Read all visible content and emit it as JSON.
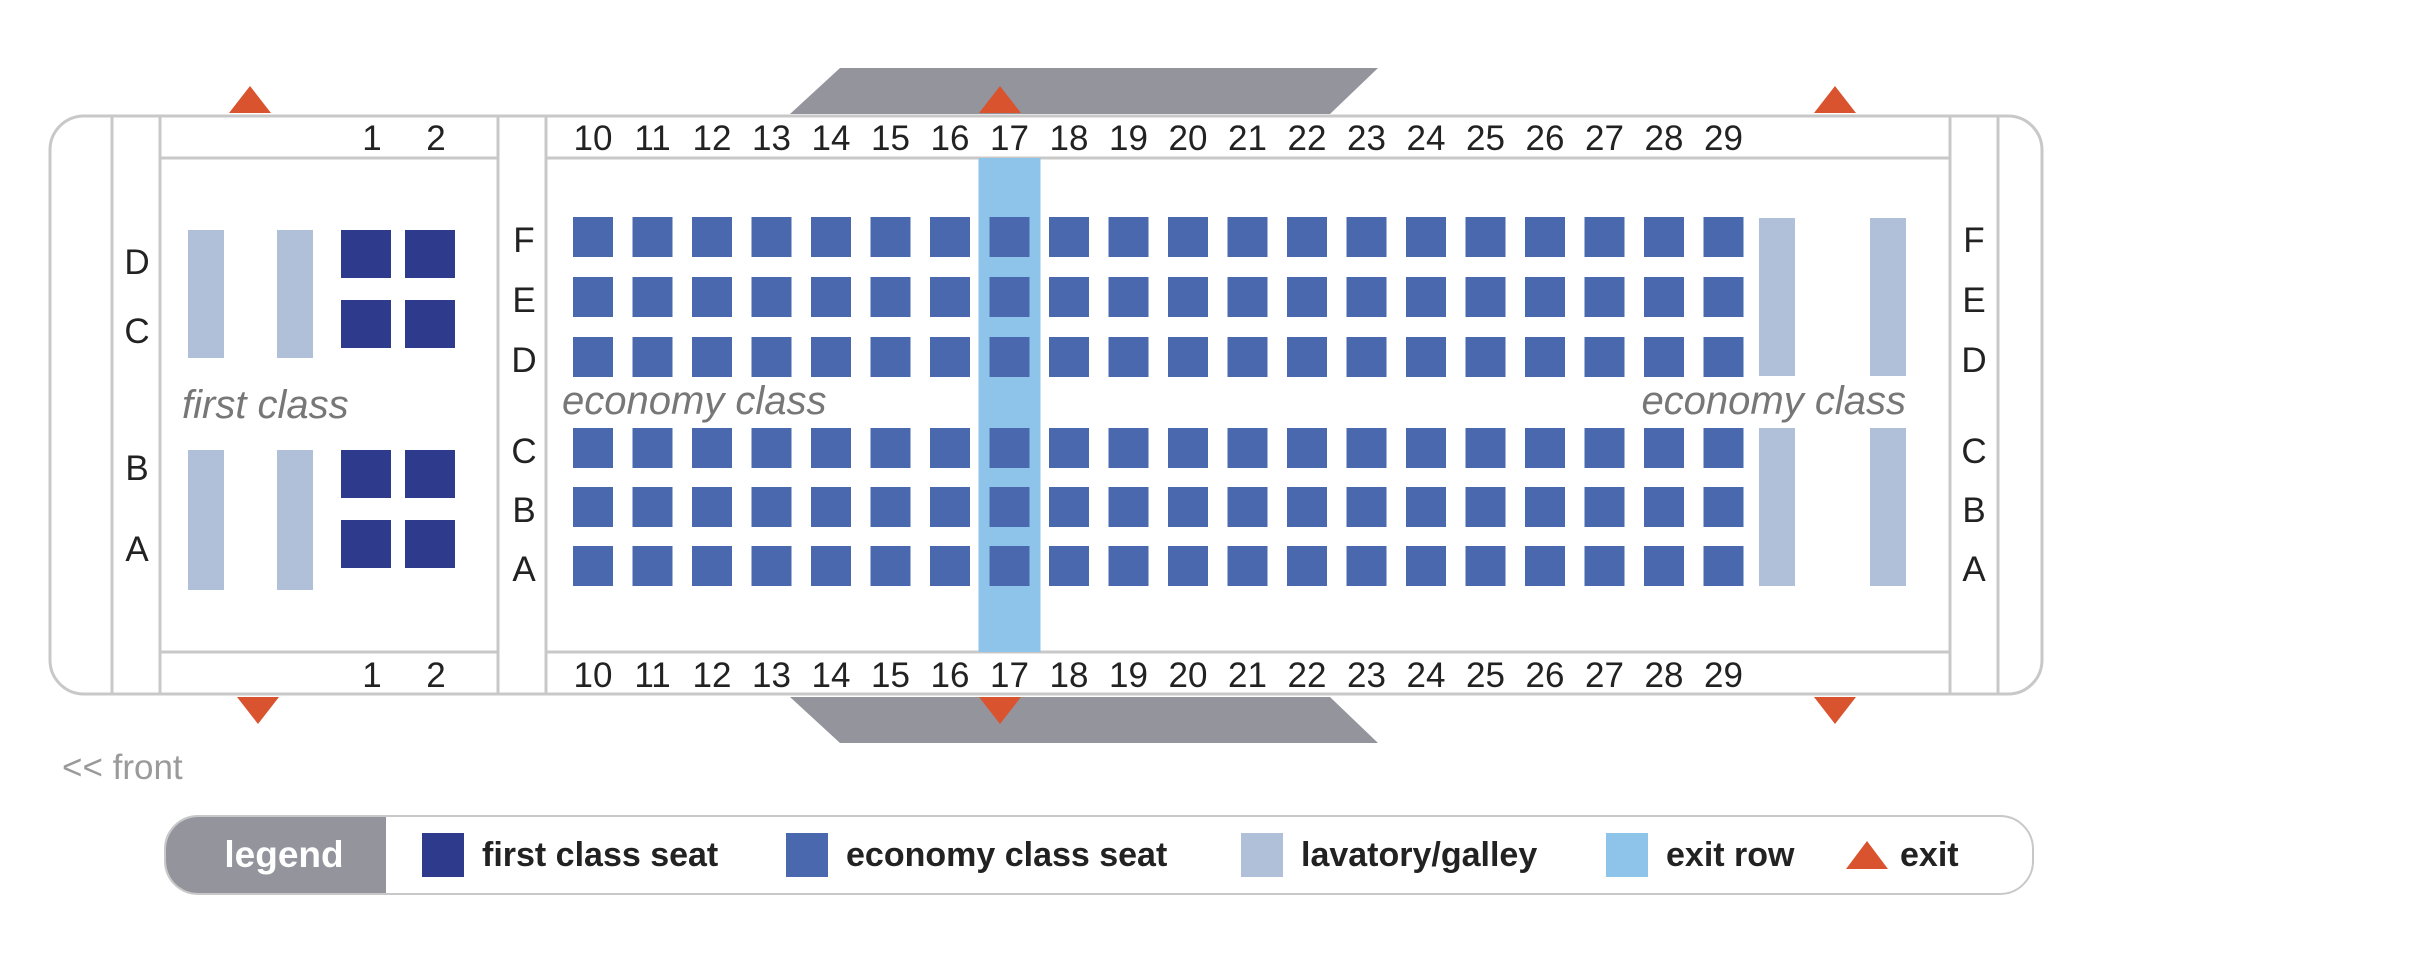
{
  "colors": {
    "first_seat": "#2e3a8c",
    "economy_seat": "#4a68ad",
    "lavatory_galley": "#b0c0d8",
    "exit_row": "#8ec3ea",
    "exit_marker": "#d9532e",
    "wing": "#94949c",
    "class_label": "#777777",
    "outline": "#c8c8c8"
  },
  "first_class": {
    "label": "first class",
    "rows": [
      "1",
      "2"
    ],
    "seat_letters": [
      "D",
      "C",
      "B",
      "A"
    ]
  },
  "economy_class": {
    "label_front": "economy class",
    "label_rear": "economy class",
    "rows": [
      "10",
      "11",
      "12",
      "13",
      "14",
      "15",
      "16",
      "17",
      "18",
      "19",
      "20",
      "21",
      "22",
      "23",
      "24",
      "25",
      "26",
      "27",
      "28",
      "29"
    ],
    "seat_letters": [
      "F",
      "E",
      "D",
      "C",
      "B",
      "A"
    ],
    "rear_seat_letters": [
      "F",
      "E",
      "D",
      "C",
      "B",
      "A"
    ],
    "exit_row": "17"
  },
  "front_label": "<< front",
  "legend": {
    "title": "legend",
    "items": [
      {
        "key": "first_seat",
        "label": "first class seat"
      },
      {
        "key": "economy_seat",
        "label": "economy class seat"
      },
      {
        "key": "lavatory_galley",
        "label": "lavatory/galley"
      },
      {
        "key": "exit_row",
        "label": "exit row"
      },
      {
        "key": "exit",
        "label": "exit",
        "icon": "triangle-icon"
      }
    ]
  }
}
